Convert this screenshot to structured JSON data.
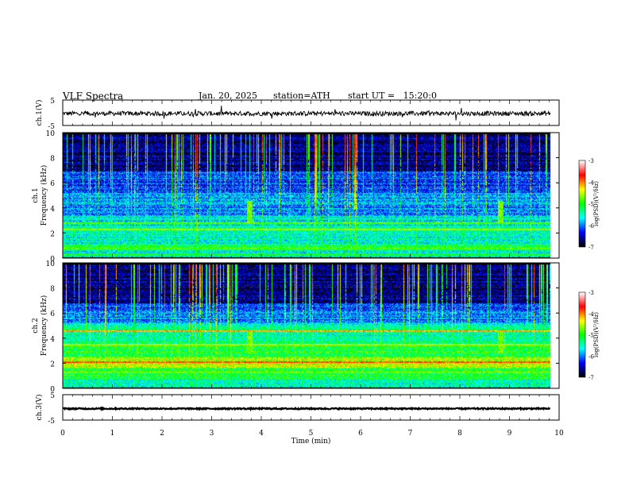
{
  "header": {
    "title": "VLF Spectra",
    "date": "Jan. 20, 2025",
    "station": "station=ATH",
    "start": "start UT =   15:20:0"
  },
  "chart_data": [
    {
      "type": "line",
      "ylabel": "ch.1(V)",
      "xlim": [
        0,
        10
      ],
      "ylim": [
        -5,
        5
      ],
      "yticks": [
        "5",
        "-5"
      ],
      "series": [
        {
          "level": -0.3,
          "noise_amp": 0.9,
          "color": "#000000"
        }
      ]
    },
    {
      "type": "heatmap",
      "ylabel_top": "ch.1",
      "ylabel": "Frequency (kHz)",
      "xlim": [
        0,
        10
      ],
      "ylim": [
        0,
        10
      ],
      "yticks": [
        "0",
        "2",
        "4",
        "6",
        "8",
        "10"
      ],
      "data_end_min": 9.82,
      "colorbar": {
        "label": "log(PSD)(V²/Hz)",
        "range": [
          -7,
          -3
        ],
        "ticks": [
          "-3",
          "-4",
          "-5",
          "-6",
          "-7"
        ],
        "colors": [
          "#000000",
          "#0000ff",
          "#00ffff",
          "#00ff00",
          "#ffff00",
          "#ff0000",
          "#ffffff"
        ]
      },
      "bands_khz": [
        {
          "from": 0.0,
          "to": 0.6,
          "level": 0.35
        },
        {
          "from": 0.6,
          "to": 1.2,
          "level": 0.45
        },
        {
          "from": 1.2,
          "to": 1.9,
          "level": 0.35
        },
        {
          "from": 1.9,
          "to": 2.6,
          "level": 0.42
        },
        {
          "from": 2.6,
          "to": 3.4,
          "level": 0.33
        },
        {
          "from": 3.4,
          "to": 5.2,
          "level": 0.27
        },
        {
          "from": 5.2,
          "to": 7.0,
          "level": 0.2
        },
        {
          "from": 7.0,
          "to": 10.0,
          "level": 0.08
        }
      ],
      "lines_khz": [
        {
          "f": 2.3,
          "level": 0.6
        },
        {
          "f": 2.8,
          "level": 0.55
        },
        {
          "f": 0.8,
          "level": 0.55
        },
        {
          "f": 0.35,
          "level": 0.5
        }
      ],
      "bursts_min": [
        3.76,
        8.82
      ]
    },
    {
      "type": "heatmap",
      "ylabel_top": "ch.2",
      "ylabel": "Frequency (kHz)",
      "xlim": [
        0,
        10
      ],
      "ylim": [
        0,
        10
      ],
      "yticks": [
        "0",
        "2",
        "4",
        "6",
        "8",
        "10"
      ],
      "data_end_min": 9.82,
      "colorbar": {
        "label": "log(PSD)(V²/Hz)",
        "range": [
          -7,
          -3
        ],
        "ticks": [
          "-3",
          "-4",
          "-5",
          "-6",
          "-7"
        ],
        "colors": [
          "#000000",
          "#0000ff",
          "#00ffff",
          "#00ff00",
          "#ffff00",
          "#ff0000",
          "#ffffff"
        ]
      },
      "bands_khz": [
        {
          "from": 0.0,
          "to": 0.8,
          "level": 0.4
        },
        {
          "from": 0.8,
          "to": 1.6,
          "level": 0.48
        },
        {
          "from": 1.6,
          "to": 2.5,
          "level": 0.6
        },
        {
          "from": 2.5,
          "to": 3.4,
          "level": 0.48
        },
        {
          "from": 3.4,
          "to": 4.2,
          "level": 0.42
        },
        {
          "from": 4.2,
          "to": 5.2,
          "level": 0.4
        },
        {
          "from": 5.2,
          "to": 6.8,
          "level": 0.24
        },
        {
          "from": 6.8,
          "to": 10.0,
          "level": 0.08
        }
      ],
      "lines_khz": [
        {
          "f": 2.1,
          "level": 0.78
        },
        {
          "f": 4.6,
          "level": 0.72
        },
        {
          "f": 3.5,
          "level": 0.62
        },
        {
          "f": 1.3,
          "level": 0.55
        }
      ],
      "bursts_min": [
        3.76,
        8.82
      ]
    },
    {
      "type": "line",
      "ylabel": "ch.3(V)",
      "xlabel": "Time (min)",
      "xlim": [
        0,
        10
      ],
      "ylim": [
        -5,
        5
      ],
      "xticks": [
        "0",
        "1",
        "2",
        "3",
        "4",
        "5",
        "6",
        "7",
        "8",
        "9",
        "10"
      ],
      "yticks": [
        "5",
        "-5"
      ],
      "series": [
        {
          "level": -0.5,
          "noise_amp": 0.25,
          "color": "#000000"
        }
      ]
    }
  ]
}
